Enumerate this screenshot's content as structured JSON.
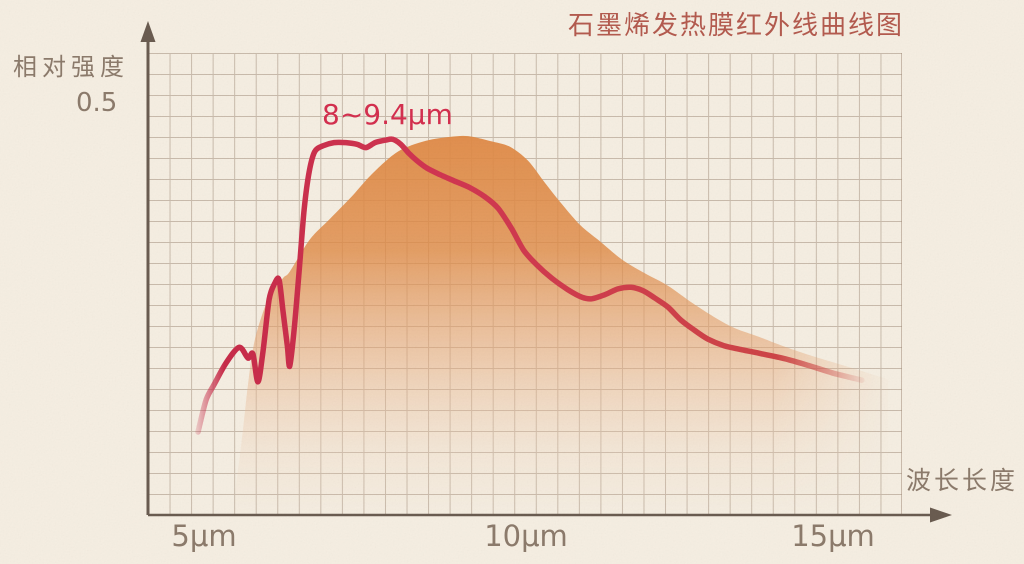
{
  "title": "石墨烯发热膜红外线曲线图",
  "y_axis": {
    "label": "相对强度",
    "tick_label": "0.5"
  },
  "x_axis": {
    "label": "波长长度",
    "ticks": [
      "5μm",
      "10μm",
      "15μm"
    ]
  },
  "annotation": {
    "text": "8~9.4μm"
  },
  "colors": {
    "background": "#f5eee2",
    "grid_line": "#a5927f",
    "axis": "#6a5c50",
    "label_text": "#8b7a6b",
    "title_text": "#b25a4e",
    "annotation_text": "#d22f4e",
    "curve": "#d13551",
    "curve_left": "#c62a48",
    "curve_right": "#cd4944",
    "area_top": "#df8a46",
    "area_mid": "#e6a878",
    "area_low": "#eed0b6"
  },
  "chart_data": {
    "type": "area",
    "title": "石墨烯发热膜红外线曲线图",
    "xlabel": "波长长度",
    "ylabel": "相对强度",
    "x_unit": "μm",
    "x_ticks": [
      "5μm",
      "10μm",
      "15μm"
    ],
    "x_tick_values": [
      5,
      10,
      15
    ],
    "y_tick_labels": [
      "0.5"
    ],
    "y_tick_values": [
      0.5
    ],
    "xlim": [
      4.8,
      16.2
    ],
    "ylim": [
      0,
      0.55
    ],
    "grid": true,
    "legend": "none",
    "annotation": {
      "text": "8~9.4μm",
      "attached_to": "plateau of red curve between 8 and 9.4 μm"
    },
    "series": [
      {
        "name": "red_intensity_curve",
        "type": "line",
        "points": [
          [
            4.92,
            0.101
          ],
          [
            5.05,
            0.14
          ],
          [
            5.18,
            0.159
          ],
          [
            5.37,
            0.185
          ],
          [
            5.58,
            0.204
          ],
          [
            5.72,
            0.191
          ],
          [
            5.8,
            0.196
          ],
          [
            5.88,
            0.162
          ],
          [
            5.96,
            0.198
          ],
          [
            6.06,
            0.262
          ],
          [
            6.15,
            0.282
          ],
          [
            6.22,
            0.286
          ],
          [
            6.28,
            0.249
          ],
          [
            6.35,
            0.207
          ],
          [
            6.39,
            0.181
          ],
          [
            6.46,
            0.225
          ],
          [
            6.54,
            0.296
          ],
          [
            6.62,
            0.371
          ],
          [
            6.7,
            0.417
          ],
          [
            6.79,
            0.442
          ],
          [
            6.92,
            0.449
          ],
          [
            7.1,
            0.453
          ],
          [
            7.29,
            0.453
          ],
          [
            7.47,
            0.451
          ],
          [
            7.61,
            0.447
          ],
          [
            7.76,
            0.453
          ],
          [
            7.92,
            0.456
          ],
          [
            8.04,
            0.457
          ],
          [
            8.17,
            0.451
          ],
          [
            8.3,
            0.44
          ],
          [
            8.43,
            0.431
          ],
          [
            8.59,
            0.422
          ],
          [
            8.8,
            0.414
          ],
          [
            9.04,
            0.406
          ],
          [
            9.28,
            0.398
          ],
          [
            9.52,
            0.387
          ],
          [
            9.73,
            0.373
          ],
          [
            9.94,
            0.349
          ],
          [
            10.14,
            0.322
          ],
          [
            10.34,
            0.305
          ],
          [
            10.59,
            0.288
          ],
          [
            10.85,
            0.274
          ],
          [
            11.07,
            0.265
          ],
          [
            11.23,
            0.263
          ],
          [
            11.44,
            0.268
          ],
          [
            11.65,
            0.275
          ],
          [
            11.86,
            0.277
          ],
          [
            12.05,
            0.273
          ],
          [
            12.24,
            0.264
          ],
          [
            12.45,
            0.253
          ],
          [
            12.66,
            0.237
          ],
          [
            12.87,
            0.225
          ],
          [
            13.09,
            0.214
          ],
          [
            13.35,
            0.206
          ],
          [
            13.64,
            0.201
          ],
          [
            13.96,
            0.196
          ],
          [
            14.33,
            0.19
          ],
          [
            14.7,
            0.182
          ],
          [
            15.08,
            0.173
          ],
          [
            15.34,
            0.168
          ],
          [
            15.56,
            0.164
          ]
        ]
      },
      {
        "name": "orange_envelope_area",
        "type": "area",
        "points": [
          [
            5.52,
            0.03
          ],
          [
            5.62,
            0.09
          ],
          [
            5.72,
            0.158
          ],
          [
            5.83,
            0.213
          ],
          [
            6.04,
            0.262
          ],
          [
            6.28,
            0.288
          ],
          [
            6.39,
            0.296
          ],
          [
            6.71,
            0.335
          ],
          [
            7.03,
            0.36
          ],
          [
            7.39,
            0.388
          ],
          [
            7.71,
            0.415
          ],
          [
            8.12,
            0.442
          ],
          [
            8.56,
            0.455
          ],
          [
            8.96,
            0.46
          ],
          [
            9.25,
            0.461
          ],
          [
            9.6,
            0.455
          ],
          [
            9.92,
            0.448
          ],
          [
            10.21,
            0.431
          ],
          [
            10.48,
            0.404
          ],
          [
            10.72,
            0.381
          ],
          [
            11.04,
            0.353
          ],
          [
            11.36,
            0.333
          ],
          [
            11.71,
            0.311
          ],
          [
            12.08,
            0.294
          ],
          [
            12.45,
            0.279
          ],
          [
            12.84,
            0.258
          ],
          [
            13.21,
            0.24
          ],
          [
            13.53,
            0.227
          ],
          [
            13.9,
            0.217
          ],
          [
            14.28,
            0.206
          ],
          [
            14.7,
            0.195
          ],
          [
            15.13,
            0.185
          ],
          [
            15.56,
            0.175
          ],
          [
            15.98,
            0.165
          ]
        ]
      }
    ]
  }
}
